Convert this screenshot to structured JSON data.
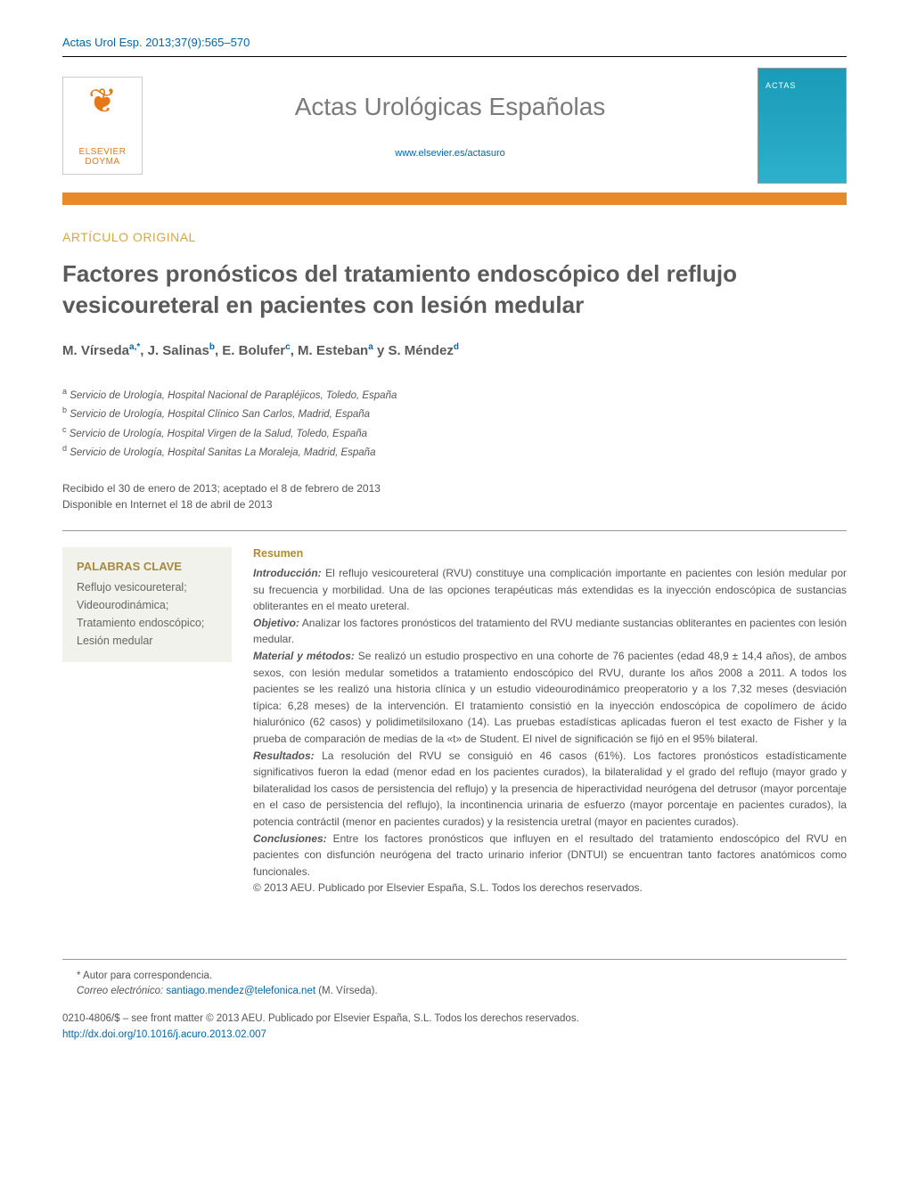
{
  "citation": "Actas Urol Esp. 2013;37(9):565–570",
  "publisher_logo": {
    "name": "ELSEVIER DOYMA",
    "tree_glyph": "❦"
  },
  "journal": {
    "name": "Actas Urológicas Españolas",
    "url": "www.elsevier.es/actasuro",
    "cover_label": "ACTAS"
  },
  "article_type": "ARTÍCULO ORIGINAL",
  "title": "Factores pronósticos del tratamiento endoscópico del reflujo vesicoureteral en pacientes con lesión medular",
  "authors_line": "M. Vírsedaª,*, J. Salinasᵇ, E. Boluferᶜ, M. Estebanª y S. Méndezᵈ",
  "authors": [
    {
      "name": "M. Vírseda",
      "marks": "a,*"
    },
    {
      "name": "J. Salinas",
      "marks": "b"
    },
    {
      "name": "E. Bolufer",
      "marks": "c"
    },
    {
      "name": "M. Esteban",
      "marks": "a"
    },
    {
      "name": "S. Méndez",
      "marks": "d"
    }
  ],
  "affiliations": [
    {
      "mark": "a",
      "text": "Servicio de Urología, Hospital Nacional de Parapléjicos, Toledo, España"
    },
    {
      "mark": "b",
      "text": "Servicio de Urología, Hospital Clínico San Carlos, Madrid, España"
    },
    {
      "mark": "c",
      "text": "Servicio de Urología, Hospital Virgen de la Salud, Toledo, España"
    },
    {
      "mark": "d",
      "text": "Servicio de Urología, Hospital Sanitas La Moraleja, Madrid, España"
    }
  ],
  "dates": {
    "received_accepted": "Recibido el 30 de enero de 2013; aceptado el 8 de febrero de 2013",
    "online": "Disponible en Internet el 18 de abril de 2013"
  },
  "keywords": {
    "heading": "PALABRAS CLAVE",
    "items": "Reflujo vesicoureteral; Videourodinámica; Tratamiento endoscópico; Lesión medular"
  },
  "abstract": {
    "heading": "Resumen",
    "sections": {
      "introduccion_label": "Introducción:",
      "introduccion": " El reflujo vesicoureteral (RVU) constituye una complicación importante en pacientes con lesión medular por su frecuencia y morbilidad. Una de las opciones terapéuticas más extendidas es la inyección endoscópica de sustancias obliterantes en el meato ureteral.",
      "objetivo_label": "Objetivo:",
      "objetivo": " Analizar los factores pronósticos del tratamiento del RVU mediante sustancias obliterantes en pacientes con lesión medular.",
      "metodos_label": "Material y métodos:",
      "metodos": " Se realizó un estudio prospectivo en una cohorte de 76 pacientes (edad 48,9 ± 14,4 años), de ambos sexos, con lesión medular sometidos a tratamiento endoscópico del RVU, durante los años 2008 a 2011. A todos los pacientes se les realizó una historia clínica y un estudio videourodinámico preoperatorio y a los 7,32 meses (desviación típica: 6,28 meses) de la intervención. El tratamiento consistió en la inyección endoscópica de copolímero de ácido hialurónico (62 casos) y polidimetilsiloxano (14). Las pruebas estadísticas aplicadas fueron el test exacto de Fisher y la prueba de comparación de medias de la «t» de Student. El nivel de significación se fijó en el 95% bilateral.",
      "resultados_label": "Resultados:",
      "resultados": " La resolución del RVU se consiguió en 46 casos (61%). Los factores pronósticos estadísticamente significativos fueron la edad (menor edad en los pacientes curados), la bilateralidad y el grado del reflujo (mayor grado y bilateralidad los casos de persistencia del reflujo) y la presencia de hiperactividad neurógena del detrusor (mayor porcentaje en el caso de persistencia del reflujo), la incontinencia urinaria de esfuerzo (mayor porcentaje en pacientes curados), la potencia contráctil (menor en pacientes curados) y la resistencia uretral (mayor en pacientes curados).",
      "conclusiones_label": "Conclusiones:",
      "conclusiones": " Entre los factores pronósticos que influyen en el resultado del tratamiento endoscópico del RVU en pacientes con disfunción neurógena del tracto urinario inferior (DNTUI) se encuentran tanto factores anatómicos como funcionales.",
      "copyright": "© 2013 AEU. Publicado por Elsevier España, S.L. Todos los derechos reservados."
    }
  },
  "correspondence": {
    "star": "* Autor para correspondencia.",
    "email_label": "Correo electrónico:",
    "email": "santiago.mendez@telefonica.net",
    "email_author": " (M. Vírseda)."
  },
  "footer": {
    "line1": "0210-4806/$ – see front matter © 2013 AEU. Publicado por Elsevier España, S.L. Todos los derechos reservados.",
    "doi": "http://dx.doi.org/10.1016/j.acuro.2013.02.007"
  },
  "colors": {
    "link": "#0066aa",
    "orange_bar": "#e88a2a",
    "gold": "#d4a84a",
    "heading_gray": "#5a5a5a",
    "body_gray": "#555555",
    "keywords_bg": "#f2f2ec"
  }
}
